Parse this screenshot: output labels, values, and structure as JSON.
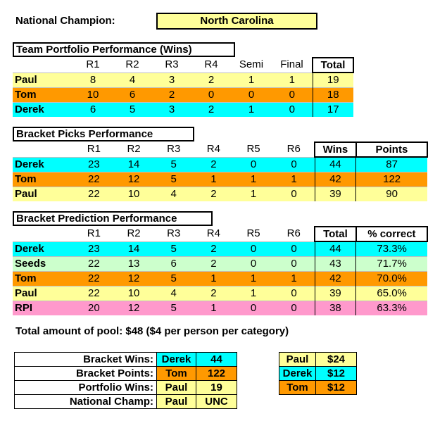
{
  "champion": {
    "label": "National Champion:",
    "value": "North Carolina"
  },
  "portfolio": {
    "title": "Team Portfolio Performance (Wins)",
    "headers": [
      "R1",
      "R2",
      "R3",
      "R4",
      "Semi",
      "Final",
      "Total"
    ],
    "rows": [
      {
        "name": "Paul",
        "color": "#ffff99",
        "vals": [
          "8",
          "4",
          "3",
          "2",
          "1",
          "1",
          "19"
        ]
      },
      {
        "name": "Tom",
        "color": "#ff9900",
        "vals": [
          "10",
          "6",
          "2",
          "0",
          "0",
          "0",
          "18"
        ]
      },
      {
        "name": "Derek",
        "color": "#00ffff",
        "vals": [
          "6",
          "5",
          "3",
          "2",
          "1",
          "0",
          "17"
        ]
      }
    ]
  },
  "picks": {
    "title": "Bracket Picks Performance",
    "headers": [
      "R1",
      "R2",
      "R3",
      "R4",
      "R5",
      "R6",
      "Wins",
      "Points"
    ],
    "rows": [
      {
        "name": "Derek",
        "color": "#00ffff",
        "vals": [
          "23",
          "14",
          "5",
          "2",
          "0",
          "0",
          "44",
          "87"
        ]
      },
      {
        "name": "Tom",
        "color": "#ff9900",
        "vals": [
          "22",
          "12",
          "5",
          "1",
          "1",
          "1",
          "42",
          "122"
        ]
      },
      {
        "name": "Paul",
        "color": "#ffff99",
        "vals": [
          "22",
          "10",
          "4",
          "2",
          "1",
          "0",
          "39",
          "90"
        ]
      }
    ]
  },
  "prediction": {
    "title": "Bracket Prediction Performance",
    "headers": [
      "R1",
      "R2",
      "R3",
      "R4",
      "R5",
      "R6",
      "Total",
      "% correct"
    ],
    "rows": [
      {
        "name": "Derek",
        "color": "#00ffff",
        "vals": [
          "23",
          "14",
          "5",
          "2",
          "0",
          "0",
          "44",
          "73.3%"
        ]
      },
      {
        "name": "Seeds",
        "color": "#ccffcc",
        "vals": [
          "22",
          "13",
          "6",
          "2",
          "0",
          "0",
          "43",
          "71.7%"
        ]
      },
      {
        "name": "Tom",
        "color": "#ff9900",
        "vals": [
          "22",
          "12",
          "5",
          "1",
          "1",
          "1",
          "42",
          "70.0%"
        ]
      },
      {
        "name": "Paul",
        "color": "#ffff99",
        "vals": [
          "22",
          "10",
          "4",
          "2",
          "1",
          "0",
          "39",
          "65.0%"
        ]
      },
      {
        "name": "RPI",
        "color": "#ff99cc",
        "vals": [
          "20",
          "12",
          "5",
          "1",
          "0",
          "0",
          "38",
          "63.3%"
        ]
      }
    ]
  },
  "pool_text": "Total amount of pool:  $48 ($4 per person per category)",
  "summary": [
    {
      "label": "Bracket Wins:",
      "name": "Derek",
      "value": "44",
      "color": "#00ffff"
    },
    {
      "label": "Bracket Points:",
      "name": "Tom",
      "value": "122",
      "color": "#ff9900"
    },
    {
      "label": "Portfolio Wins:",
      "name": "Paul",
      "value": "19",
      "color": "#ffff99"
    },
    {
      "label": "National Champ:",
      "name": "Paul",
      "value": "UNC",
      "color": "#ffff99"
    }
  ],
  "payouts": [
    {
      "name": "Paul",
      "amount": "$24",
      "color": "#ffff99"
    },
    {
      "name": "Derek",
      "amount": "$12",
      "color": "#00ffff"
    },
    {
      "name": "Tom",
      "amount": "$12",
      "color": "#ff9900"
    }
  ]
}
